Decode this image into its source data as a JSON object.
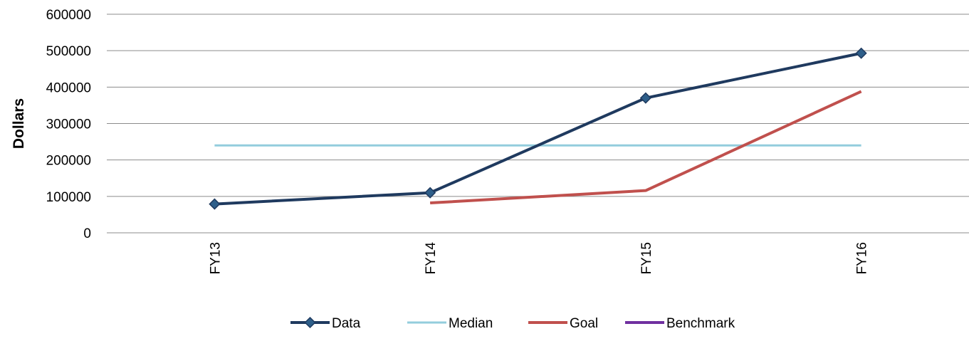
{
  "chart_data": {
    "type": "line",
    "title": "",
    "xlabel": "",
    "ylabel": "Dollars",
    "categories": [
      "FY13",
      "FY14",
      "FY15",
      "FY16"
    ],
    "ylim": [
      0,
      600000
    ],
    "yticks": [
      "0",
      "100000",
      "200000",
      "300000",
      "400000",
      "500000",
      "600000"
    ],
    "grid": "horizontal",
    "legend_position": "bottom",
    "series": [
      {
        "name": "Data",
        "values": [
          79000,
          110000,
          370000,
          493000
        ],
        "color": "#1f3a5f",
        "marker": "diamond"
      },
      {
        "name": "Median",
        "values": [
          240000,
          240000,
          240000,
          240000
        ],
        "color": "#93cddd",
        "marker": "none"
      },
      {
        "name": "Goal",
        "values": [
          null,
          82000,
          116000,
          388000
        ],
        "color": "#c0504d",
        "marker": "none"
      },
      {
        "name": "Benchmark",
        "values": [
          null,
          null,
          null,
          null
        ],
        "color": "#7030a0",
        "marker": "none"
      }
    ]
  }
}
